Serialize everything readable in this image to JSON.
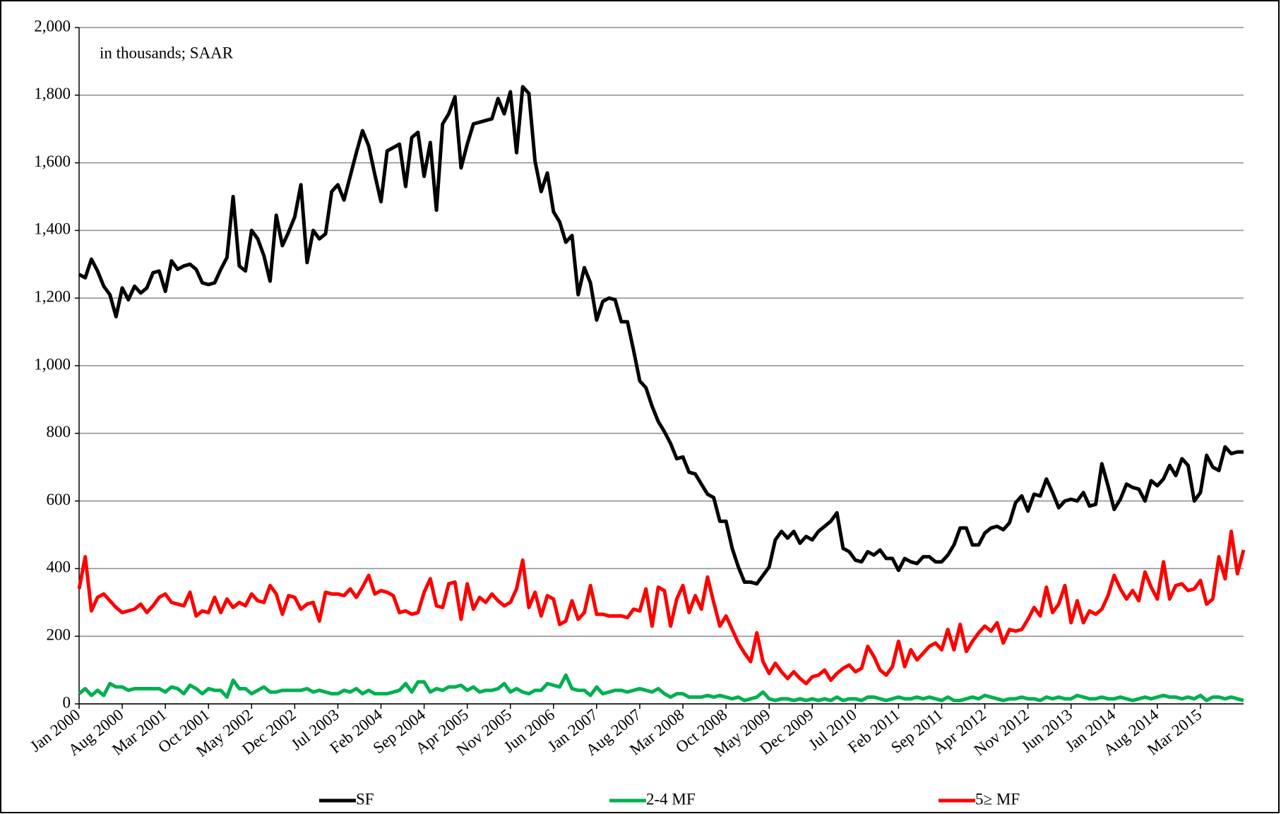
{
  "chart_data": {
    "type": "line",
    "annotation": "in thousands; SAAR",
    "categories": [
      "Jan 2000",
      null,
      null,
      null,
      null,
      null,
      null,
      "Aug 2000",
      null,
      null,
      null,
      null,
      null,
      null,
      "Mar 2001",
      null,
      null,
      null,
      null,
      null,
      null,
      "Oct 2001",
      null,
      null,
      null,
      null,
      null,
      null,
      "May 2002",
      null,
      null,
      null,
      null,
      null,
      null,
      "Dec 2002",
      null,
      null,
      null,
      null,
      null,
      null,
      "Jul 2003",
      null,
      null,
      null,
      null,
      null,
      null,
      "Feb 2004",
      null,
      null,
      null,
      null,
      null,
      null,
      "Sep 2004",
      null,
      null,
      null,
      null,
      null,
      null,
      "Apr 2005",
      null,
      null,
      null,
      null,
      null,
      null,
      "Nov 2005",
      null,
      null,
      null,
      null,
      null,
      null,
      "Jun 2006",
      null,
      null,
      null,
      null,
      null,
      null,
      "Jan 2007",
      null,
      null,
      null,
      null,
      null,
      null,
      "Aug 2007",
      null,
      null,
      null,
      null,
      null,
      null,
      "Mar 2008",
      null,
      null,
      null,
      null,
      null,
      null,
      "Oct 2008",
      null,
      null,
      null,
      null,
      null,
      null,
      "May 2009",
      null,
      null,
      null,
      null,
      null,
      null,
      "Dec 2009",
      null,
      null,
      null,
      null,
      null,
      null,
      "Jul 2010",
      null,
      null,
      null,
      null,
      null,
      null,
      "Feb 2011",
      null,
      null,
      null,
      null,
      null,
      null,
      "Sep 2011",
      null,
      null,
      null,
      null,
      null,
      null,
      "Apr 2012",
      null,
      null,
      null,
      null,
      null,
      null,
      "Nov 2012",
      null,
      null,
      null,
      null,
      null,
      null,
      "Jun 2013",
      null,
      null,
      null,
      null,
      null,
      null,
      "Jan 2014",
      null,
      null,
      null,
      null,
      null,
      null,
      "Aug 2014",
      null,
      null,
      null,
      null,
      null,
      null,
      "Mar 2015",
      null,
      null,
      null,
      null,
      null,
      null,
      null
    ],
    "series": [
      {
        "name": "SF",
        "color": "#000000",
        "values": [
          1270,
          1260,
          1315,
          1280,
          1235,
          1210,
          1145,
          1230,
          1195,
          1235,
          1215,
          1230,
          1275,
          1280,
          1220,
          1310,
          1285,
          1295,
          1300,
          1285,
          1245,
          1240,
          1245,
          1285,
          1320,
          1500,
          1295,
          1280,
          1400,
          1375,
          1325,
          1250,
          1445,
          1355,
          1395,
          1440,
          1535,
          1305,
          1400,
          1375,
          1390,
          1515,
          1535,
          1490,
          1560,
          1630,
          1695,
          1650,
          1565,
          1485,
          1635,
          1645,
          1655,
          1530,
          1675,
          1690,
          1560,
          1660,
          1460,
          1715,
          1745,
          1795,
          1585,
          1655,
          1715,
          1720,
          1725,
          1730,
          1790,
          1745,
          1810,
          1630,
          1825,
          1805,
          1605,
          1515,
          1570,
          1455,
          1425,
          1365,
          1385,
          1210,
          1290,
          1245,
          1135,
          1190,
          1200,
          1195,
          1130,
          1130,
          1045,
          955,
          935,
          880,
          835,
          805,
          770,
          725,
          730,
          685,
          680,
          650,
          620,
          610,
          540,
          540,
          460,
          405,
          360,
          360,
          355,
          380,
          405,
          485,
          510,
          490,
          510,
          475,
          495,
          485,
          510,
          525,
          540,
          565,
          460,
          450,
          425,
          420,
          450,
          440,
          455,
          430,
          430,
          395,
          430,
          420,
          415,
          435,
          435,
          420,
          420,
          440,
          470,
          520,
          520,
          470,
          470,
          505,
          520,
          525,
          515,
          535,
          595,
          615,
          570,
          620,
          615,
          665,
          625,
          580,
          600,
          605,
          600,
          625,
          585,
          590,
          710,
          645,
          575,
          605,
          650,
          640,
          635,
          600,
          660,
          645,
          665,
          705,
          675,
          725,
          705,
          600,
          625,
          735,
          700,
          690,
          760,
          740,
          745,
          745
        ]
      },
      {
        "name": "2-4 MF",
        "color": "#00b050",
        "values": [
          30,
          45,
          25,
          40,
          25,
          60,
          50,
          50,
          40,
          45,
          45,
          45,
          45,
          45,
          35,
          50,
          45,
          30,
          55,
          45,
          30,
          45,
          40,
          40,
          20,
          70,
          45,
          45,
          30,
          40,
          50,
          35,
          35,
          40,
          40,
          40,
          40,
          45,
          35,
          40,
          35,
          30,
          30,
          40,
          35,
          45,
          30,
          40,
          30,
          30,
          30,
          35,
          40,
          60,
          35,
          65,
          65,
          35,
          45,
          40,
          50,
          50,
          55,
          40,
          50,
          35,
          40,
          40,
          45,
          60,
          35,
          45,
          35,
          30,
          40,
          40,
          60,
          55,
          50,
          85,
          45,
          40,
          40,
          25,
          50,
          30,
          35,
          40,
          40,
          35,
          40,
          45,
          40,
          35,
          45,
          30,
          20,
          30,
          30,
          20,
          20,
          20,
          25,
          20,
          25,
          20,
          15,
          20,
          10,
          15,
          20,
          35,
          15,
          10,
          15,
          15,
          10,
          15,
          10,
          15,
          10,
          15,
          10,
          20,
          10,
          15,
          15,
          10,
          20,
          20,
          15,
          10,
          15,
          20,
          15,
          15,
          20,
          15,
          20,
          15,
          10,
          20,
          10,
          10,
          15,
          20,
          15,
          25,
          20,
          15,
          10,
          15,
          15,
          20,
          15,
          15,
          10,
          20,
          15,
          20,
          15,
          15,
          25,
          20,
          15,
          15,
          20,
          15,
          15,
          20,
          15,
          10,
          15,
          20,
          15,
          20,
          25,
          20,
          20,
          15,
          20,
          15,
          25,
          10,
          20,
          20,
          15,
          20,
          15,
          10
        ]
      },
      {
        "name": "5≥ MF",
        "color": "#ff0000",
        "values": [
          340,
          435,
          275,
          315,
          325,
          305,
          285,
          270,
          275,
          280,
          295,
          270,
          290,
          315,
          325,
          300,
          295,
          290,
          330,
          260,
          275,
          270,
          315,
          270,
          310,
          285,
          300,
          290,
          325,
          305,
          300,
          350,
          325,
          265,
          320,
          315,
          280,
          295,
          300,
          245,
          330,
          325,
          325,
          320,
          340,
          315,
          345,
          380,
          325,
          335,
          330,
          320,
          270,
          275,
          265,
          270,
          330,
          370,
          290,
          285,
          355,
          360,
          250,
          355,
          280,
          315,
          300,
          325,
          305,
          290,
          300,
          340,
          425,
          285,
          330,
          260,
          320,
          310,
          235,
          245,
          305,
          250,
          270,
          350,
          265,
          265,
          260,
          260,
          260,
          255,
          280,
          275,
          340,
          230,
          345,
          335,
          230,
          310,
          350,
          270,
          320,
          280,
          375,
          300,
          230,
          260,
          220,
          180,
          150,
          125,
          210,
          125,
          90,
          120,
          95,
          75,
          95,
          75,
          60,
          80,
          85,
          100,
          70,
          90,
          105,
          115,
          95,
          105,
          170,
          140,
          100,
          85,
          110,
          185,
          110,
          160,
          130,
          150,
          170,
          180,
          160,
          220,
          160,
          235,
          155,
          185,
          210,
          230,
          215,
          240,
          180,
          220,
          215,
          220,
          250,
          285,
          260,
          345,
          270,
          295,
          350,
          240,
          305,
          240,
          275,
          265,
          280,
          320,
          380,
          340,
          310,
          335,
          305,
          390,
          345,
          310,
          420,
          310,
          350,
          355,
          335,
          340,
          365,
          295,
          310,
          435,
          370,
          510,
          385,
          455
        ]
      }
    ],
    "ylim": [
      0,
      2000
    ],
    "yticks": [
      0,
      200,
      400,
      600,
      800,
      {
        "value": 1000,
        "label": "1,000"
      },
      {
        "value": 1200,
        "label": "1,200"
      },
      {
        "value": 1400,
        "label": "1,400"
      },
      {
        "value": 1600,
        "label": "1,600"
      },
      {
        "value": 1800,
        "label": "1,800"
      },
      {
        "value": 2000,
        "label": "2,000"
      }
    ],
    "grid": true,
    "legend": "bottom"
  }
}
